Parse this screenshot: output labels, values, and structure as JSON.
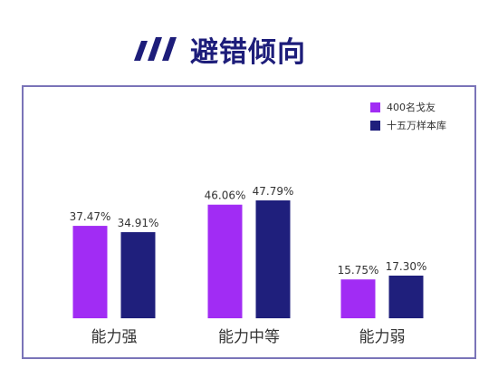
{
  "header": {
    "title": "避错倾向",
    "icon": "three-slash-logo-icon"
  },
  "colors": {
    "series1": "#a12cf4",
    "series2": "#1f1f7c",
    "title": "#1d1d7a",
    "frame": "#7a74b8"
  },
  "chart_data": {
    "type": "bar",
    "categories": [
      "能力强",
      "能力中等",
      "能力弱"
    ],
    "series": [
      {
        "name": "400名戈友",
        "values": [
          37.47,
          46.06,
          15.75
        ],
        "labels": [
          "37.47%",
          "46.06%",
          "15.75%"
        ]
      },
      {
        "name": "十五万样本库",
        "values": [
          34.91,
          47.79,
          17.3
        ],
        "labels": [
          "34.91%",
          "47.79%",
          "17.30%"
        ]
      }
    ],
    "ylim": [
      0,
      60
    ],
    "grid": false,
    "legend": "top-right"
  }
}
